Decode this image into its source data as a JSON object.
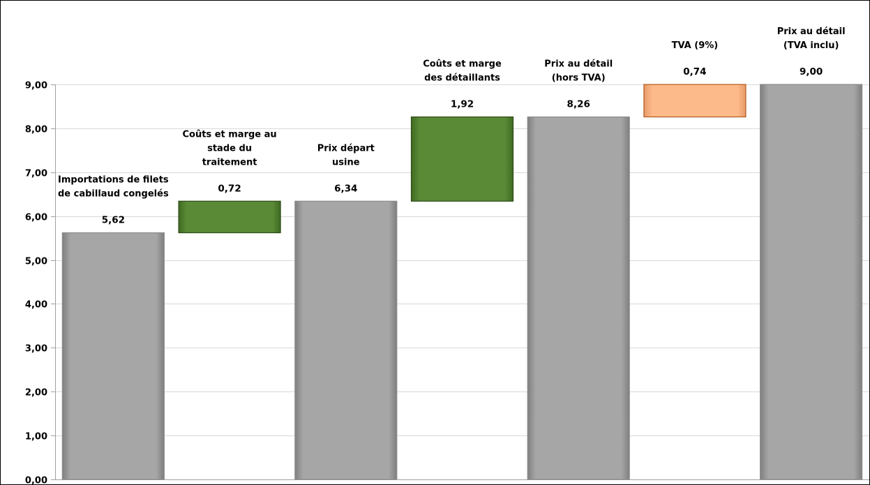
{
  "chart_data": {
    "type": "waterfall",
    "ylim": [
      0,
      9
    ],
    "y_ticks": [
      "0,00",
      "1,00",
      "2,00",
      "3,00",
      "4,00",
      "5,00",
      "6,00",
      "7,00",
      "8,00",
      "9,00"
    ],
    "grid": true,
    "legend": "none",
    "colors": {
      "total": "#a6a6a6",
      "cost_margin": "#5a8a36",
      "vat": "#fcb98a",
      "grid": "#d9d9d9"
    },
    "bars": [
      {
        "kind": "total",
        "label_lines": [
          "Importations de filets",
          "de cabillaud congelés"
        ],
        "value": 5.62,
        "value_label": "5,62",
        "start": 0,
        "end": 5.62
      },
      {
        "kind": "cost_margin",
        "label_lines": [
          "Coûts et marge au",
          "stade du",
          "traitement"
        ],
        "value": 0.72,
        "value_label": "0,72",
        "start": 5.62,
        "end": 6.34
      },
      {
        "kind": "total",
        "label_lines": [
          "Prix départ",
          "usine"
        ],
        "value": 6.34,
        "value_label": "6,34",
        "start": 0,
        "end": 6.34
      },
      {
        "kind": "cost_margin",
        "label_lines": [
          "Coûts et marge",
          "des détaillants"
        ],
        "value": 1.92,
        "value_label": "1,92",
        "start": 6.34,
        "end": 8.26
      },
      {
        "kind": "total",
        "label_lines": [
          "Prix au détail",
          "(hors TVA)"
        ],
        "value": 8.26,
        "value_label": "8,26",
        "start": 0,
        "end": 8.26
      },
      {
        "kind": "vat",
        "label_lines": [
          "TVA (9%)"
        ],
        "value": 0.74,
        "value_label": "0,74",
        "start": 8.26,
        "end": 9.0
      },
      {
        "kind": "total",
        "label_lines": [
          "Prix au détail",
          "(TVA inclu)"
        ],
        "value": 9.0,
        "value_label": "9,00",
        "start": 0,
        "end": 9.0
      }
    ]
  }
}
